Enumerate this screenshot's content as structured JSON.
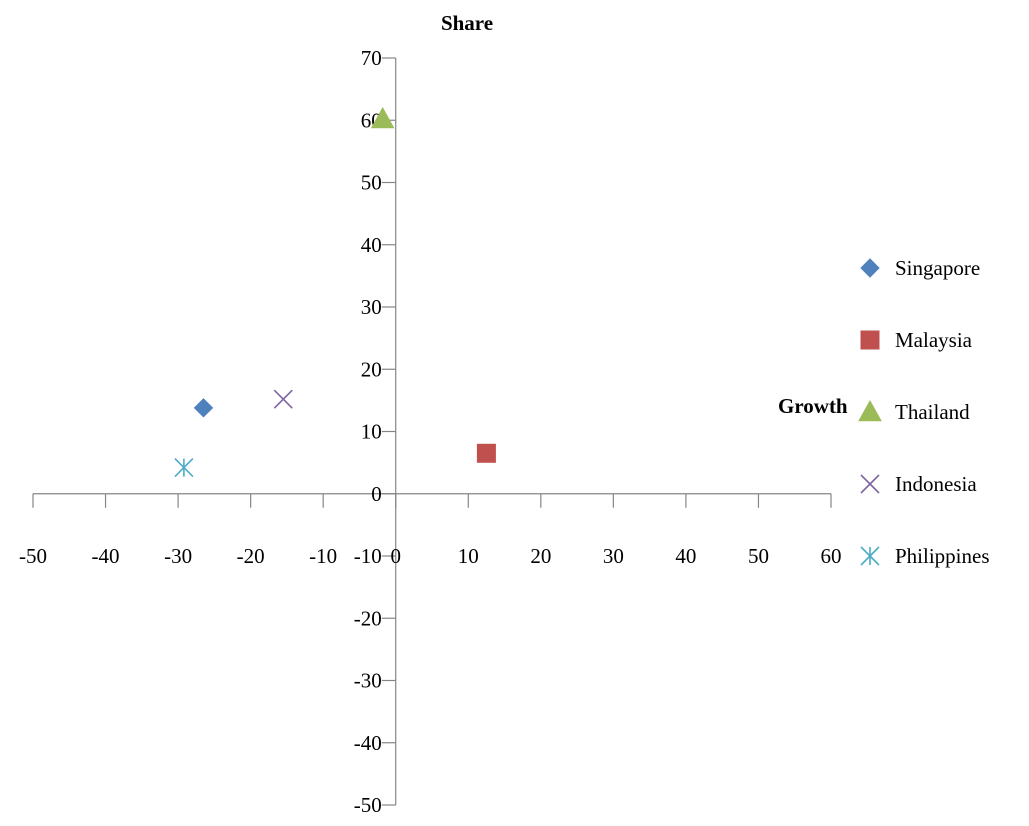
{
  "chart_data": {
    "type": "scatter",
    "title": "",
    "xlabel": "Growth",
    "ylabel": "Share",
    "xlim": [
      -50,
      60
    ],
    "ylim": [
      -50,
      70
    ],
    "x_ticks": [
      -50,
      -40,
      -30,
      -20,
      -10,
      0,
      10,
      20,
      30,
      40,
      50,
      60
    ],
    "y_ticks": [
      -50,
      -40,
      -30,
      -20,
      -10,
      0,
      10,
      20,
      30,
      40,
      50,
      60,
      70
    ],
    "grid": false,
    "legend_position": "right",
    "series": [
      {
        "name": "Singapore",
        "marker": "diamond",
        "color": "#4F81BD",
        "x": [
          -26.5
        ],
        "y": [
          13.8
        ]
      },
      {
        "name": "Malaysia",
        "marker": "square",
        "color": "#C0504D",
        "x": [
          12.5
        ],
        "y": [
          6.5
        ]
      },
      {
        "name": "Thailand",
        "marker": "triangle",
        "color": "#9BBB59",
        "x": [
          -1.8
        ],
        "y": [
          60.2
        ]
      },
      {
        "name": "Indonesia",
        "marker": "x",
        "color": "#8064A2",
        "x": [
          -15.5
        ],
        "y": [
          15.2
        ]
      },
      {
        "name": "Philippines",
        "marker": "asterisk",
        "color": "#4BACC6",
        "x": [
          -29.2
        ],
        "y": [
          4.2
        ]
      }
    ]
  }
}
